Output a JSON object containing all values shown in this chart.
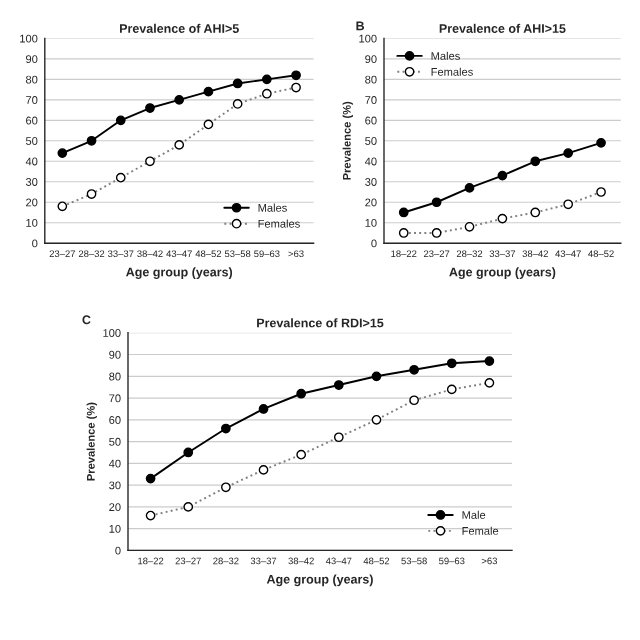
{
  "chart_data": [
    {
      "type": "line",
      "title": "Prevalence of AHI>5",
      "xlabel": "Age group (years)",
      "categories": [
        "23–27",
        "28–32",
        "33–37",
        "38–42",
        "43–47",
        "48–52",
        "53–58",
        "59–63",
        ">63"
      ],
      "marker": "circle",
      "grid": "y",
      "legend": "lower right",
      "ylim": [
        0,
        100
      ],
      "yticks": [
        0,
        10,
        20,
        30,
        40,
        50,
        60,
        70,
        80,
        90,
        100
      ],
      "series": [
        {
          "name": "Males",
          "color": "#000000",
          "line_style": "solid",
          "values": [
            44,
            50,
            60,
            66,
            70,
            74,
            78,
            80,
            82
          ]
        },
        {
          "name": "Females",
          "color": "#808080",
          "line_style": "dotted",
          "values": [
            18,
            24,
            32,
            40,
            48,
            58,
            68,
            73,
            76
          ]
        }
      ]
    },
    {
      "type": "line",
      "title": "Prevalence of AHI>15",
      "xlabel": "Age group (years)",
      "ylabel": "Prevalence (%)",
      "annotations": [
        "B"
      ],
      "categories": [
        "18–22",
        "23–27",
        "28–32",
        "33–37",
        "38–42",
        "43–47",
        "48–52"
      ],
      "marker": "circle",
      "grid": "y",
      "legend": "upper left",
      "ylim": [
        0,
        100
      ],
      "yticks": [
        0,
        10,
        20,
        30,
        40,
        50,
        60,
        70,
        80,
        90,
        100
      ],
      "series": [
        {
          "name": "Males",
          "color": "#000000",
          "line_style": "solid",
          "values": [
            15,
            20,
            27,
            33,
            40,
            44,
            49
          ]
        },
        {
          "name": "Females",
          "color": "#808080",
          "line_style": "dotted",
          "values": [
            5,
            5,
            8,
            12,
            15,
            19,
            25
          ]
        }
      ]
    },
    {
      "type": "line",
      "title": "Prevalence of RDI>15",
      "xlabel": "Age group (years)",
      "ylabel": "Prevalence (%)",
      "annotations": [
        "C"
      ],
      "categories": [
        "18–22",
        "23–27",
        "28–32",
        "33–37",
        "38–42",
        "43–47",
        "48–52",
        "53–58",
        "59–63",
        ">63"
      ],
      "marker": "circle",
      "grid": "y",
      "legend": "lower right",
      "ylim": [
        0,
        100
      ],
      "yticks": [
        0,
        10,
        20,
        30,
        40,
        50,
        60,
        70,
        80,
        90,
        100
      ],
      "series": [
        {
          "name": "Male",
          "color": "#000000",
          "line_style": "solid",
          "values": [
            33,
            45,
            56,
            65,
            72,
            76,
            80,
            83,
            86,
            87
          ]
        },
        {
          "name": "Female",
          "color": "#808080",
          "line_style": "dotted",
          "values": [
            16,
            20,
            29,
            37,
            44,
            52,
            60,
            69,
            74,
            77
          ]
        }
      ]
    }
  ]
}
